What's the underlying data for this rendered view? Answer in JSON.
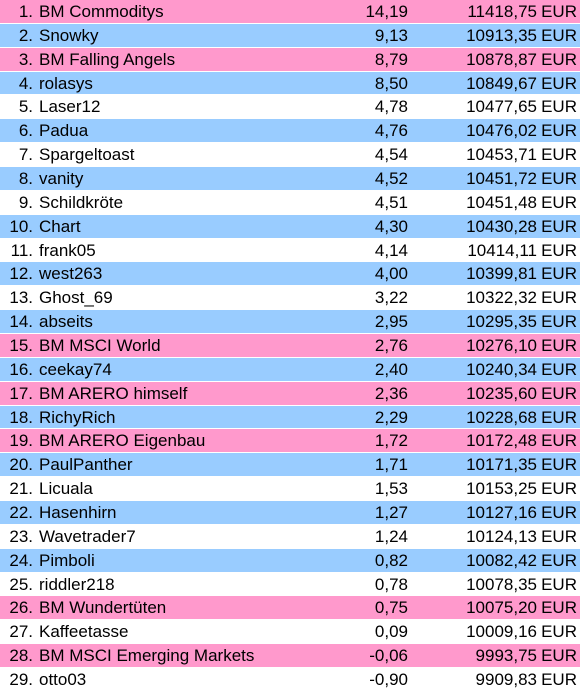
{
  "colors": {
    "pink": "#ff99cc",
    "blue": "#99ccff",
    "white": "#ffffff"
  },
  "rows": [
    {
      "rank": "1.",
      "name": "BM Commoditys",
      "pct": "14,19",
      "value": "11418,75",
      "currency": "EUR",
      "color": "pink"
    },
    {
      "rank": "2.",
      "name": "Snowky",
      "pct": "9,13",
      "value": "10913,35",
      "currency": "EUR",
      "color": "blue"
    },
    {
      "rank": "3.",
      "name": "BM Falling Angels",
      "pct": "8,79",
      "value": "10878,87",
      "currency": "EUR",
      "color": "pink"
    },
    {
      "rank": "4.",
      "name": "rolasys",
      "pct": "8,50",
      "value": "10849,67",
      "currency": "EUR",
      "color": "blue"
    },
    {
      "rank": "5.",
      "name": "Laser12",
      "pct": "4,78",
      "value": "10477,65",
      "currency": "EUR",
      "color": "white"
    },
    {
      "rank": "6.",
      "name": "Padua",
      "pct": "4,76",
      "value": "10476,02",
      "currency": "EUR",
      "color": "blue"
    },
    {
      "rank": "7.",
      "name": "Spargeltoast",
      "pct": "4,54",
      "value": "10453,71",
      "currency": "EUR",
      "color": "white"
    },
    {
      "rank": "8.",
      "name": "vanity",
      "pct": "4,52",
      "value": "10451,72",
      "currency": "EUR",
      "color": "blue"
    },
    {
      "rank": "9.",
      "name": "Schildkröte",
      "pct": "4,51",
      "value": "10451,48",
      "currency": "EUR",
      "color": "white"
    },
    {
      "rank": "10.",
      "name": "Chart",
      "pct": "4,30",
      "value": "10430,28",
      "currency": "EUR",
      "color": "blue"
    },
    {
      "rank": "11.",
      "name": "frank05",
      "pct": "4,14",
      "value": "10414,11",
      "currency": "EUR",
      "color": "white"
    },
    {
      "rank": "12.",
      "name": "west263",
      "pct": "4,00",
      "value": "10399,81",
      "currency": "EUR",
      "color": "blue"
    },
    {
      "rank": "13.",
      "name": "Ghost_69",
      "pct": "3,22",
      "value": "10322,32",
      "currency": "EUR",
      "color": "white"
    },
    {
      "rank": "14.",
      "name": "abseits",
      "pct": "2,95",
      "value": "10295,35",
      "currency": "EUR",
      "color": "blue"
    },
    {
      "rank": "15.",
      "name": "BM MSCI World",
      "pct": "2,76",
      "value": "10276,10",
      "currency": "EUR",
      "color": "pink"
    },
    {
      "rank": "16.",
      "name": "ceekay74",
      "pct": "2,40",
      "value": "10240,34",
      "currency": "EUR",
      "color": "blue"
    },
    {
      "rank": "17.",
      "name": "BM ARERO himself",
      "pct": "2,36",
      "value": "10235,60",
      "currency": "EUR",
      "color": "pink"
    },
    {
      "rank": "18.",
      "name": "RichyRich",
      "pct": "2,29",
      "value": "10228,68",
      "currency": "EUR",
      "color": "blue"
    },
    {
      "rank": "19.",
      "name": "BM ARERO Eigenbau",
      "pct": "1,72",
      "value": "10172,48",
      "currency": "EUR",
      "color": "pink"
    },
    {
      "rank": "20.",
      "name": "PaulPanther",
      "pct": "1,71",
      "value": "10171,35",
      "currency": "EUR",
      "color": "blue"
    },
    {
      "rank": "21.",
      "name": "Licuala",
      "pct": "1,53",
      "value": "10153,25",
      "currency": "EUR",
      "color": "white"
    },
    {
      "rank": "22.",
      "name": "Hasenhirn",
      "pct": "1,27",
      "value": "10127,16",
      "currency": "EUR",
      "color": "blue"
    },
    {
      "rank": "23.",
      "name": "Wavetrader7",
      "pct": "1,24",
      "value": "10124,13",
      "currency": "EUR",
      "color": "white"
    },
    {
      "rank": "24.",
      "name": "Pimboli",
      "pct": "0,82",
      "value": "10082,42",
      "currency": "EUR",
      "color": "blue"
    },
    {
      "rank": "25.",
      "name": "riddler218",
      "pct": "0,78",
      "value": "10078,35",
      "currency": "EUR",
      "color": "white"
    },
    {
      "rank": "26.",
      "name": "BM Wundertüten",
      "pct": "0,75",
      "value": "10075,20",
      "currency": "EUR",
      "color": "pink"
    },
    {
      "rank": "27.",
      "name": "Kaffeetasse",
      "pct": "0,09",
      "value": "10009,16",
      "currency": "EUR",
      "color": "white"
    },
    {
      "rank": "28.",
      "name": "BM MSCI Emerging Markets",
      "pct": "-0,06",
      "value": "9993,75",
      "currency": "EUR",
      "color": "pink"
    },
    {
      "rank": "29.",
      "name": "otto03",
      "pct": "-0,90",
      "value": "9909,83",
      "currency": "EUR",
      "color": "white"
    }
  ]
}
